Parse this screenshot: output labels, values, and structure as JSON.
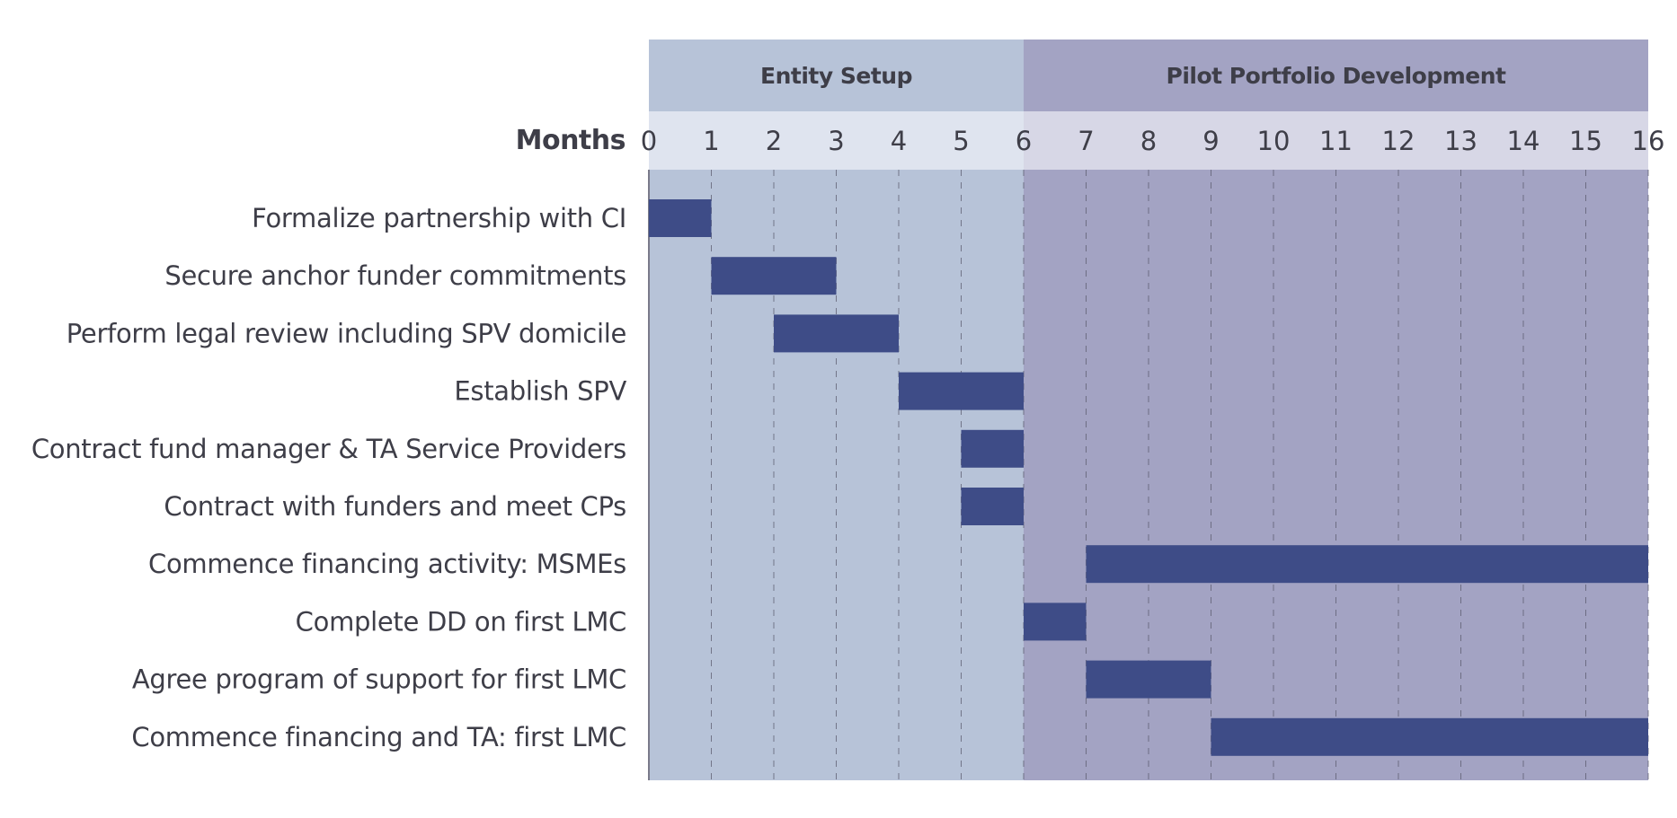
{
  "chart_data": {
    "type": "gantt",
    "axis_label": "Months",
    "x_range": [
      0,
      16
    ],
    "x_ticks": [
      0,
      1,
      2,
      3,
      4,
      5,
      6,
      7,
      8,
      9,
      10,
      11,
      12,
      13,
      14,
      15,
      16
    ],
    "grid": true,
    "phases": [
      {
        "label": "Entity Setup",
        "start": 0,
        "end": 6,
        "color": "#b7c3d8",
        "header_color": "#dfe4ef"
      },
      {
        "label": "Pilot Portfolio Development",
        "start": 6,
        "end": 16,
        "color": "#a3a3c3",
        "header_color": "#d7d7e6"
      }
    ],
    "bar_color": "#3e4c87",
    "tasks": [
      {
        "label": "Formalize partnership with CI",
        "start": 0,
        "end": 1
      },
      {
        "label": "Secure anchor funder commitments",
        "start": 1,
        "end": 3
      },
      {
        "label": "Perform legal review including SPV domicile",
        "start": 2,
        "end": 4
      },
      {
        "label": "Establish SPV",
        "start": 4,
        "end": 6
      },
      {
        "label": "Contract fund manager & TA Service Providers",
        "start": 5,
        "end": 6
      },
      {
        "label": "Contract with funders and meet CPs",
        "start": 5,
        "end": 6
      },
      {
        "label": "Commence financing activity: MSMEs",
        "start": 7,
        "end": 16
      },
      {
        "label": "Complete DD on first LMC",
        "start": 6,
        "end": 7
      },
      {
        "label": "Agree program of support for first LMC",
        "start": 7,
        "end": 9
      },
      {
        "label": "Commence financing and TA: first LMC",
        "start": 9,
        "end": 16
      }
    ]
  }
}
